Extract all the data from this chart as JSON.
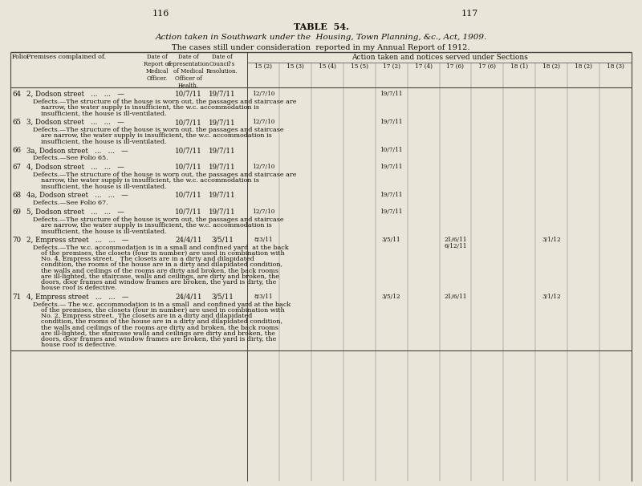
{
  "bg_color": "#e9e5d9",
  "text_color": "#111008",
  "line_color": "#444444",
  "page_num_left": "116",
  "page_num_right": "117",
  "table_label": "TABLE  54.",
  "title1": "Action taken in Southwark under the  Housing, Town Planning, &c., Act, 1909.",
  "title2": "The cases still under consideration  reported in my Annual Report of 1912.",
  "right_group_header": "Action taken and notices served under Sections",
  "section_cols": [
    "15 (2)",
    "15 (3)",
    "15 (4)",
    "15 (5)",
    "17 (2)",
    "17 (4)",
    "17 (6)",
    "17 (6)",
    "18 (1)",
    "18 (2)",
    "18 (2)",
    "18 (3)"
  ],
  "rows": [
    {
      "folio": "64",
      "premise": "2, Dodson street",
      "dash": "—",
      "d_rep": "10/7/11",
      "d_council": "19/7/11",
      "section_vals": {
        "0": "12/7/10",
        "4": "19/7/11"
      },
      "defect_lines": [
        "Defects.—The structure of the house is worn out, the passages and staircase are",
        "narrow, the water supply is insufficient, the w.c. accommodation is",
        "insufficient, the house is ill-ventilated."
      ]
    },
    {
      "folio": "65",
      "premise": "3, Dodson street",
      "dash": "—",
      "d_rep": "10/7/11",
      "d_council": "19/7/11",
      "section_vals": {
        "0": "12/7/10",
        "4": "19/7/11"
      },
      "defect_lines": [
        "Defects.—The structure of the house is worn out. the passages and staircase",
        "are narrow, the water supply is insufficient, the w.c. accommodation is",
        "insufficient, the house is ill-ventilated."
      ]
    },
    {
      "folio": "66",
      "premise": "3a, Dodson street",
      "dash": "—",
      "d_rep": "10/7/11",
      "d_council": "19/7/11",
      "section_vals": {
        "4": "10/7/11"
      },
      "defect_lines": [
        "Defects.—See Folio 65."
      ]
    },
    {
      "folio": "67",
      "premise": "4, Dodson street",
      "dash": "—",
      "d_rep": "10/7/11",
      "d_council": "19/7/11",
      "section_vals": {
        "0": "12/7/10",
        "4": "19/7/11"
      },
      "defect_lines": [
        "Defects.—The structure of the house is worn out, the passages and staircase are",
        "narrow, the water supply is insufficient, the w.c. accommodation is",
        "insufficient, the house is ill-ventilated."
      ]
    },
    {
      "folio": "68",
      "premise": "4a, Dodson street",
      "dash": "—",
      "d_rep": "10/7/11",
      "d_council": "19/7/11",
      "section_vals": {
        "4": "19/7/11"
      },
      "defect_lines": [
        "Defects.—See Folio 67."
      ]
    },
    {
      "folio": "69",
      "premise": "5, Dodson street",
      "dash": "—",
      "d_rep": "10/7/11",
      "d_council": "19/7/11",
      "section_vals": {
        "0": "12/7/10",
        "4": "19/7/11"
      },
      "defect_lines": [
        "Defects.—The structure of the house is worn out, the passages and staircase",
        "are narrow, the water supply is insufficient, the w.c. accommodation is",
        "insufficient, the house is ill-ventilated."
      ]
    },
    {
      "folio": "70",
      "premise": "2, Empress street",
      "dash": "—",
      "d_rep": "24/4/11",
      "d_council": "3/5/11",
      "section_vals": {
        "0": "8/3/11",
        "4": "3/5/11",
        "6": "21/6/11\n6/12/11",
        "9": "3/1/12"
      },
      "defect_lines": [
        "Defects.—The w.c. accommodation is in a small and confined yard  at the back",
        "of the premises, the closets (four in number) are used in combination with",
        "No. 4, Empress street.   The closets are in a dirty and dilapidated",
        "condition, the rooms of the house are in a dirty and dilapidated condition,",
        "the walls and ceilings of the rooms are dirty and broken, the back rooms",
        "are ill-lighted, the staircase, walls and ceilings, are dirty and broken, the",
        "doors, door frames and window frames are broken, the yard is dirty, the",
        "house roof is defective."
      ]
    },
    {
      "folio": "71",
      "premise": "4, Empress street",
      "dash": "—",
      "d_rep": "24/4/11",
      "d_council": "3/5/11",
      "section_vals": {
        "0": "8/3/11",
        "4": "3/5/12",
        "6": "21/6/11",
        "9": "3/1/12"
      },
      "defect_lines": [
        "Defects.— The w.c. accommodation is in a small  and confined yard at the back",
        "of the premises, the closets (four in number) are used in combination with",
        "No. 2, Empress street.  The closets are in a dirty and dilapidated",
        "condition, the rooms of the house are in a dirty and dilapidated condition,",
        "the walls and ceilings of the rooms are dirty and broken, the back rooms",
        "are ill-lighted, the staircase walls and ceilings are dirty and broken, the",
        "doors, door frames and window frames are broken, the yard is dirty, the",
        "house roof is defective."
      ]
    }
  ]
}
